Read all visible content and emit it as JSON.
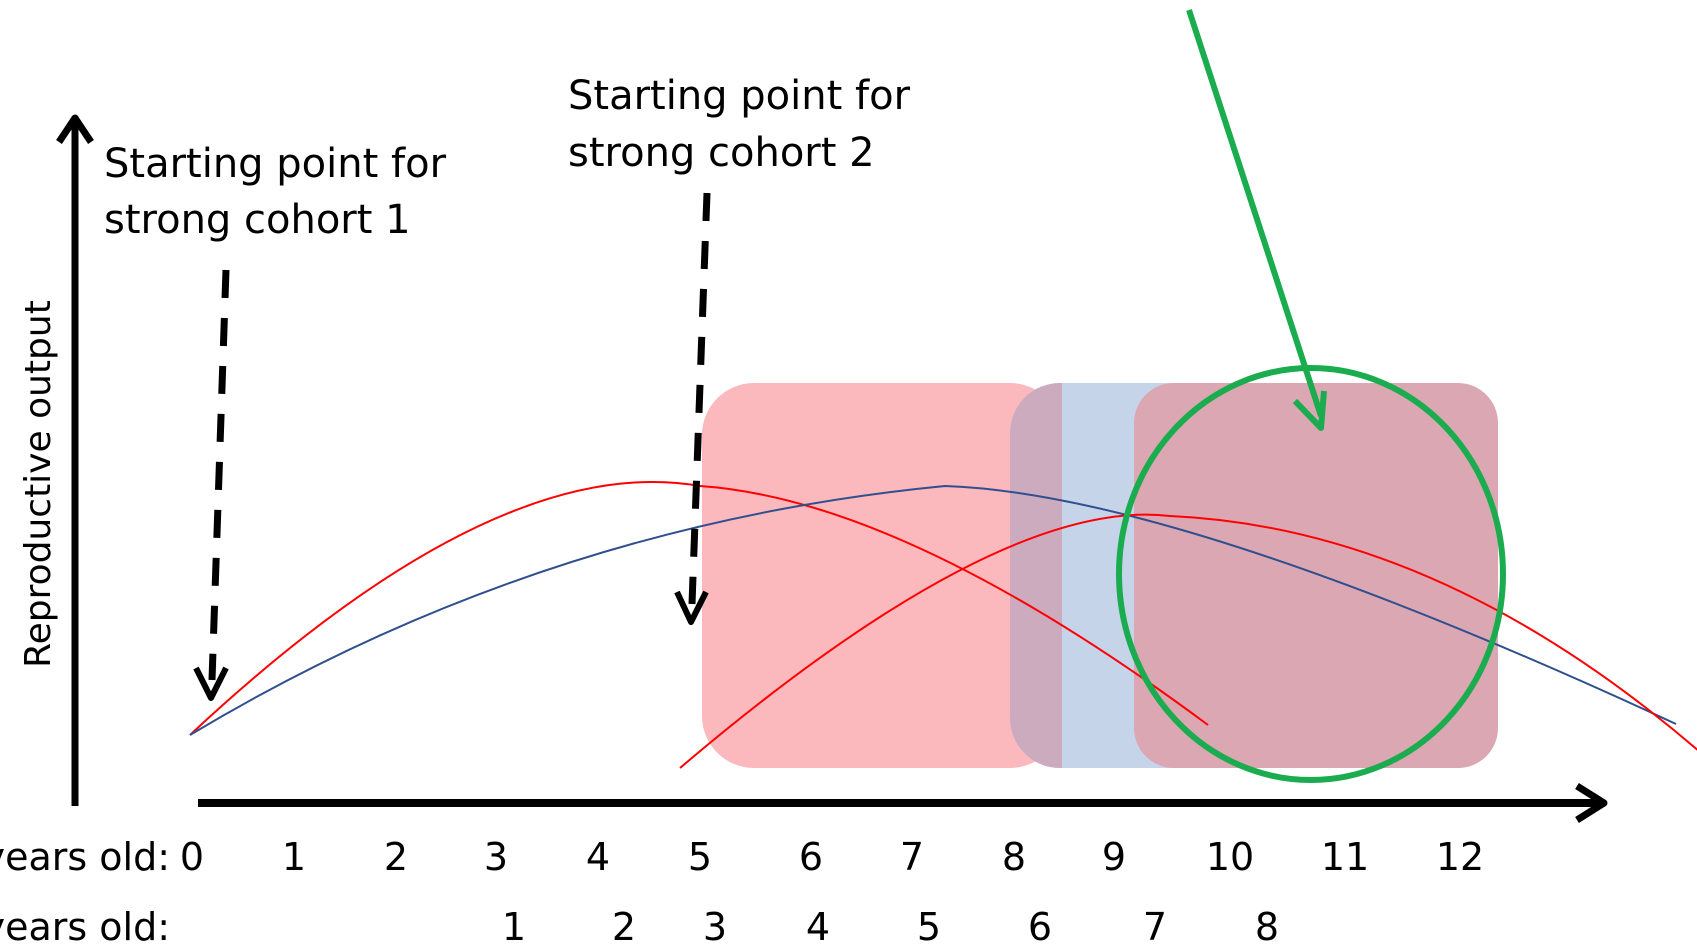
{
  "yaxis_label": "Reproductive output",
  "annotations": {
    "cohort1": [
      "Starting point for",
      "strong cohort 1"
    ],
    "cohort2": [
      "Starting point for",
      "strong cohort 2"
    ]
  },
  "rows": [
    {
      "label": "years old:",
      "ticks": [
        "0",
        "1",
        "2",
        "3",
        "4",
        "5",
        "6",
        "7",
        "8",
        "9",
        "10",
        "11",
        "12"
      ]
    },
    {
      "label": "years old:",
      "ticks": [
        "1",
        "2",
        "3",
        "4",
        "5",
        "6",
        "7",
        "8"
      ]
    }
  ],
  "colors": {
    "red_curve": "#ff0000",
    "blue_curve": "#2f4f8f",
    "red_region": "#fbb8bd",
    "blue_region": "#c6d4ea",
    "overlap_region": "#dba7b2",
    "highlight": "#1aac4f",
    "axis": "#000000"
  }
}
